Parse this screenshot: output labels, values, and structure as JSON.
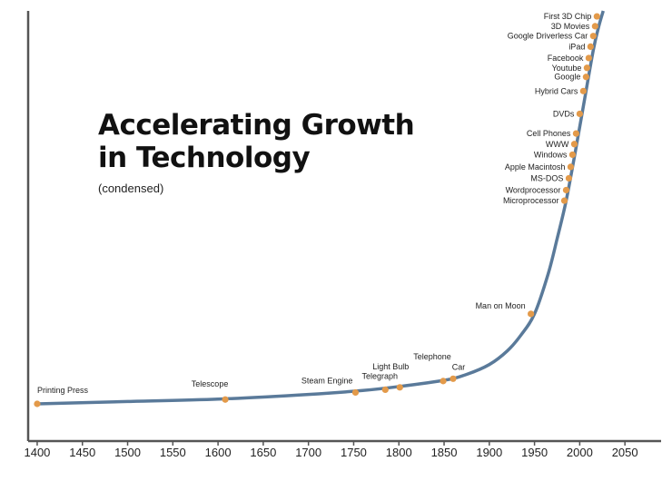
{
  "chart_data": {
    "type": "line",
    "title_line1": "Accelerating Growth",
    "title_line2": "in Technology",
    "subtitle": "(condensed)",
    "xlabel": "",
    "ylabel": "",
    "xlim": [
      1390,
      2090
    ],
    "ylim": [
      0,
      100
    ],
    "x_ticks": [
      1400,
      1450,
      1500,
      1550,
      1600,
      1650,
      1700,
      1750,
      1800,
      1850,
      1900,
      1950,
      2000,
      2050
    ],
    "grid": false,
    "colors": {
      "curve": "#5a7a9a",
      "point": "#e39a4a",
      "axis": "#555555"
    },
    "curve": [
      {
        "x": 1400,
        "y": 0.0
      },
      {
        "x": 1500,
        "y": 0.6
      },
      {
        "x": 1600,
        "y": 1.2
      },
      {
        "x": 1700,
        "y": 2.4
      },
      {
        "x": 1760,
        "y": 3.4
      },
      {
        "x": 1800,
        "y": 4.4
      },
      {
        "x": 1850,
        "y": 6.0
      },
      {
        "x": 1875,
        "y": 7.5
      },
      {
        "x": 1900,
        "y": 10.0
      },
      {
        "x": 1920,
        "y": 13.5
      },
      {
        "x": 1935,
        "y": 17.5
      },
      {
        "x": 1950,
        "y": 22.9
      },
      {
        "x": 1965,
        "y": 33.0
      },
      {
        "x": 1975,
        "y": 42.0
      },
      {
        "x": 1985,
        "y": 51.7
      },
      {
        "x": 1995,
        "y": 64.0
      },
      {
        "x": 2005,
        "y": 77.0
      },
      {
        "x": 2015,
        "y": 90.0
      },
      {
        "x": 2021,
        "y": 96.0
      },
      {
        "x": 2026,
        "y": 100.0
      }
    ],
    "events": [
      {
        "label": "Printing Press",
        "x": 1400,
        "y": 0.0,
        "anchor": "start",
        "lx": 0,
        "ly": -12
      },
      {
        "label": "Telescope",
        "x": 1608,
        "y": 1.1,
        "anchor": "middle",
        "lx": -17,
        "ly": -14
      },
      {
        "label": "Steam Engine",
        "x": 1752,
        "y": 2.9,
        "anchor": "end",
        "lx": -3,
        "ly": -10
      },
      {
        "label": "Telegraph",
        "x": 1785,
        "y": 3.6,
        "anchor": "middle",
        "lx": -6,
        "ly": -12
      },
      {
        "label": "Light Bulb",
        "x": 1801,
        "y": 4.2,
        "anchor": "middle",
        "lx": -10,
        "ly": -20
      },
      {
        "label": "Telephone",
        "x": 1849,
        "y": 5.8,
        "anchor": "middle",
        "lx": -12,
        "ly": -24
      },
      {
        "label": "Car",
        "x": 1860,
        "y": 6.4,
        "anchor": "middle",
        "lx": 6,
        "ly": -10
      },
      {
        "label": "Man on Moon",
        "x": 1946,
        "y": 22.9,
        "anchor": "end",
        "lx": -6,
        "ly": -6
      },
      {
        "label": "Microprocessor",
        "x": 1983,
        "y": 51.7,
        "anchor": "end",
        "lx": -6,
        "ly": 3
      },
      {
        "label": "Wordprocessor",
        "x": 1985,
        "y": 54.4,
        "anchor": "end",
        "lx": -6,
        "ly": 3
      },
      {
        "label": "MS-DOS",
        "x": 1988,
        "y": 57.4,
        "anchor": "end",
        "lx": -6,
        "ly": 3
      },
      {
        "label": "Apple Macintosh",
        "x": 1990,
        "y": 60.3,
        "anchor": "end",
        "lx": -6,
        "ly": 3
      },
      {
        "label": "Windows",
        "x": 1992,
        "y": 63.4,
        "anchor": "end",
        "lx": -6,
        "ly": 3
      },
      {
        "label": "WWW",
        "x": 1994,
        "y": 66.1,
        "anchor": "end",
        "lx": -6,
        "ly": 3
      },
      {
        "label": "Cell Phones",
        "x": 1996,
        "y": 68.8,
        "anchor": "end",
        "lx": -6,
        "ly": 3
      },
      {
        "label": "DVDs",
        "x": 2000,
        "y": 73.8,
        "anchor": "end",
        "lx": -6,
        "ly": 3
      },
      {
        "label": "Hybrid Cars",
        "x": 2004,
        "y": 79.6,
        "anchor": "end",
        "lx": -6,
        "ly": 3
      },
      {
        "label": "Google",
        "x": 2007,
        "y": 83.2,
        "anchor": "end",
        "lx": -6,
        "ly": 3
      },
      {
        "label": "Youtube",
        "x": 2008,
        "y": 85.5,
        "anchor": "end",
        "lx": -6,
        "ly": 3
      },
      {
        "label": "Facebook",
        "x": 2010,
        "y": 88.0,
        "anchor": "end",
        "lx": -6,
        "ly": 3
      },
      {
        "label": "iPad",
        "x": 2012,
        "y": 90.9,
        "anchor": "end",
        "lx": -6,
        "ly": 3
      },
      {
        "label": "Google Driverless Car",
        "x": 2015,
        "y": 93.6,
        "anchor": "end",
        "lx": -6,
        "ly": 3
      },
      {
        "label": "3D Movies",
        "x": 2017,
        "y": 96.1,
        "anchor": "end",
        "lx": -6,
        "ly": 3
      },
      {
        "label": "First 3D Chip",
        "x": 2019,
        "y": 98.6,
        "anchor": "end",
        "lx": -6,
        "ly": 3
      }
    ]
  }
}
